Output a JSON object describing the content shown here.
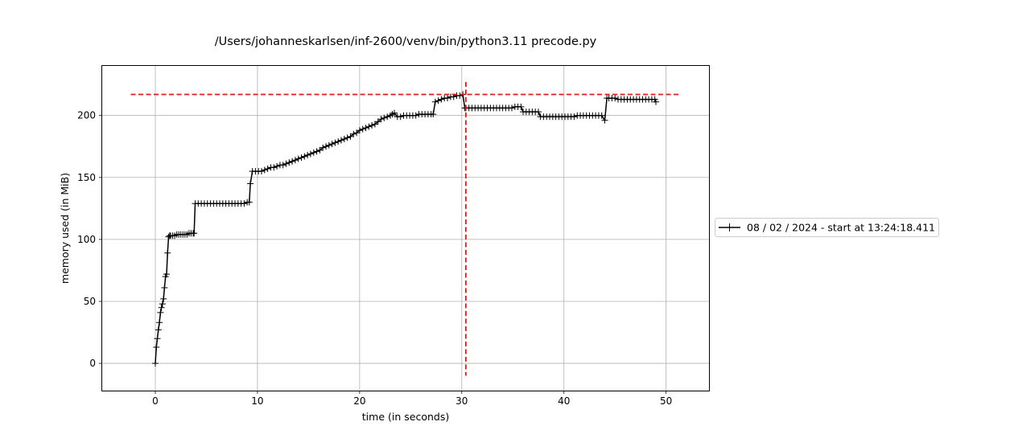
{
  "chart_data": {
    "type": "line",
    "title": "/Users/johanneskarlsen/inf-2600/venv/bin/python3.11 precode.py",
    "xlabel": "time (in seconds)",
    "ylabel": "memory used (in MiB)",
    "xlim": [
      -5.2,
      54.2
    ],
    "ylim": [
      -22,
      240
    ],
    "xticks": [
      0,
      10,
      20,
      30,
      40,
      50
    ],
    "xtick_labels": [
      "0",
      "10",
      "20",
      "30",
      "40",
      "50"
    ],
    "yticks": [
      0,
      50,
      100,
      150,
      200
    ],
    "ytick_labels": [
      "0",
      "50",
      "100",
      "150",
      "200"
    ],
    "grid": true,
    "legend_position": "outside-right",
    "series": [
      {
        "name": "08 / 02 / 2024 - start at 13:24:18.411",
        "color": "#000000",
        "marker": "plus",
        "x": [
          0.0,
          0.1,
          0.2,
          0.3,
          0.4,
          0.5,
          0.6,
          0.7,
          0.8,
          0.9,
          1.0,
          1.1,
          1.2,
          1.3,
          1.4,
          1.5,
          1.7,
          1.9,
          2.1,
          2.3,
          2.5,
          2.7,
          2.9,
          3.1,
          3.3,
          3.5,
          3.7,
          3.8,
          3.9,
          4.2,
          4.5,
          4.8,
          5.1,
          5.4,
          5.7,
          6.0,
          6.3,
          6.6,
          6.9,
          7.2,
          7.5,
          7.8,
          8.1,
          8.4,
          8.7,
          9.0,
          9.2,
          9.3,
          9.5,
          9.8,
          10.1,
          10.4,
          10.7,
          11.0,
          11.3,
          11.6,
          11.9,
          12.2,
          12.5,
          12.8,
          13.1,
          13.4,
          13.7,
          14.0,
          14.3,
          14.6,
          14.9,
          15.2,
          15.5,
          15.8,
          16.1,
          16.4,
          16.7,
          17.0,
          17.3,
          17.6,
          17.9,
          18.2,
          18.5,
          18.8,
          19.1,
          19.4,
          19.7,
          20.0,
          20.3,
          20.6,
          20.9,
          21.2,
          21.5,
          21.8,
          22.1,
          22.4,
          22.7,
          23.0,
          23.2,
          23.4,
          23.7,
          24.0,
          24.3,
          24.6,
          24.9,
          25.2,
          25.5,
          25.8,
          26.1,
          26.4,
          26.7,
          27.0,
          27.2,
          27.4,
          27.7,
          28.0,
          28.3,
          28.6,
          28.9,
          29.2,
          29.5,
          29.8,
          30.1,
          30.3,
          30.4,
          30.7,
          31.0,
          31.3,
          31.6,
          31.9,
          32.2,
          32.5,
          32.8,
          33.1,
          33.4,
          33.7,
          34.0,
          34.3,
          34.6,
          34.9,
          35.2,
          35.5,
          35.8,
          36.0,
          36.3,
          36.6,
          36.9,
          37.2,
          37.5,
          37.7,
          38.0,
          38.3,
          38.6,
          38.9,
          39.2,
          39.5,
          39.8,
          40.1,
          40.4,
          40.7,
          41.0,
          41.3,
          41.6,
          41.9,
          42.2,
          42.5,
          42.8,
          43.1,
          43.4,
          43.7,
          44.0,
          44.2,
          44.4,
          44.7,
          45.0,
          45.3,
          45.6,
          45.9,
          46.2,
          46.5,
          46.8,
          47.1,
          47.4,
          47.7,
          48.0,
          48.3,
          48.6,
          48.9,
          49.0
        ],
        "y": [
          0,
          13,
          20,
          27,
          33,
          41,
          45,
          48,
          52,
          61,
          70,
          72,
          89,
          102,
          103,
          103,
          103,
          103,
          104,
          104,
          104,
          104,
          104,
          104,
          105,
          105,
          105,
          105,
          129,
          129,
          129,
          129,
          129,
          129,
          129,
          129,
          129,
          129,
          129,
          129,
          129,
          129,
          129,
          129,
          129,
          130,
          130,
          145,
          155,
          155,
          155,
          155,
          156,
          157,
          158,
          158,
          159,
          160,
          160,
          161,
          162,
          163,
          164,
          165,
          166,
          167,
          168,
          169,
          170,
          171,
          172,
          174,
          175,
          176,
          177,
          178,
          179,
          180,
          181,
          182,
          183,
          185,
          186,
          188,
          189,
          190,
          191,
          192,
          193,
          195,
          197,
          198,
          199,
          200,
          201,
          202,
          199,
          199,
          200,
          200,
          200,
          200,
          200,
          201,
          201,
          201,
          201,
          201,
          201,
          211,
          212,
          213,
          214,
          214,
          215,
          215,
          216,
          216,
          217,
          206,
          206,
          206,
          206,
          206,
          206,
          206,
          206,
          206,
          206,
          206,
          206,
          206,
          206,
          206,
          206,
          206,
          207,
          207,
          207,
          203,
          203,
          203,
          203,
          203,
          203,
          199,
          199,
          199,
          199,
          199,
          199,
          199,
          199,
          199,
          199,
          199,
          199,
          200,
          200,
          200,
          200,
          200,
          200,
          200,
          200,
          200,
          196,
          214,
          214,
          214,
          214,
          213,
          213,
          213,
          213,
          213,
          213,
          213,
          213,
          213,
          213,
          213,
          213,
          213,
          211
        ]
      }
    ],
    "hline": {
      "y": 217,
      "x_range": [
        -2.4,
        51.4
      ],
      "color": "#e31a1c",
      "style": "dashed"
    },
    "vline": {
      "x": 30.4,
      "y_range": [
        -10,
        227
      ],
      "color": "#e31a1c",
      "style": "dashed"
    }
  }
}
